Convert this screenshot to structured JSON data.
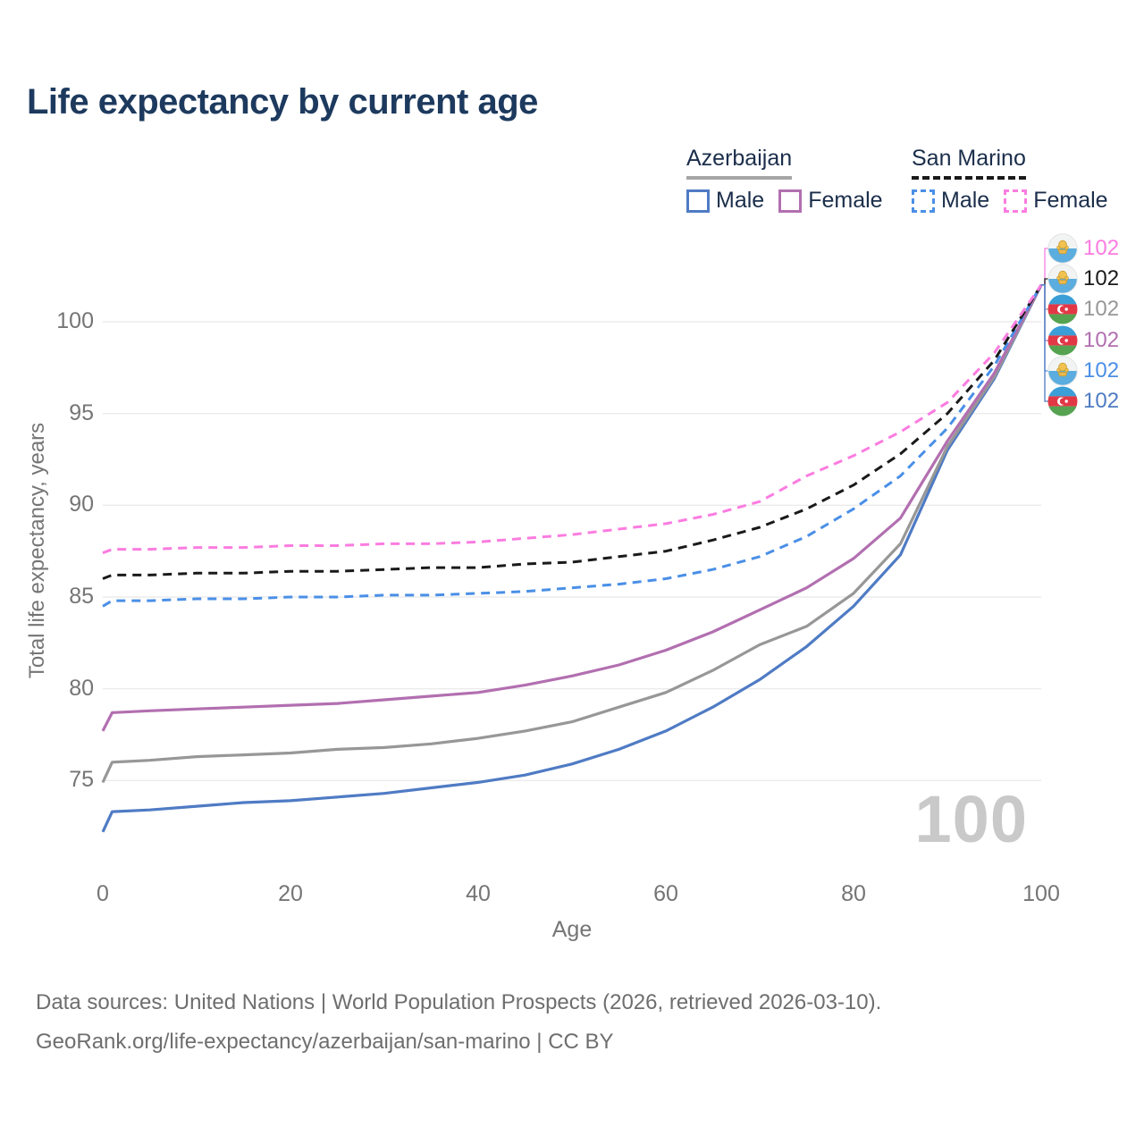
{
  "title": "Life expectancy by current age",
  "legend": {
    "groups": [
      {
        "key": "az",
        "label": "Azerbaijan",
        "underline_series": "az-total",
        "items": [
          {
            "label": "Male",
            "series": "az-male"
          },
          {
            "label": "Female",
            "series": "az-female"
          }
        ]
      },
      {
        "key": "sm",
        "label": "San Marino",
        "underline_series": "sm-total",
        "items": [
          {
            "label": "Male",
            "series": "sm-male"
          },
          {
            "label": "Female",
            "series": "sm-female"
          }
        ]
      }
    ]
  },
  "chart_data": {
    "type": "line",
    "title": "Life expectancy by current age",
    "xlabel": "Age",
    "ylabel": "Total life expectancy, years",
    "x_ticks": [
      0,
      20,
      40,
      60,
      80,
      100
    ],
    "y_ticks": [
      75,
      80,
      85,
      90,
      95,
      100
    ],
    "xlim": [
      0,
      100
    ],
    "ylim": [
      71,
      103.5
    ],
    "grid": "horizontal",
    "legend_position": "top-right",
    "x": [
      0,
      1,
      5,
      10,
      15,
      20,
      25,
      30,
      35,
      40,
      45,
      50,
      55,
      60,
      65,
      70,
      75,
      80,
      85,
      90,
      95,
      100
    ],
    "series": [
      {
        "key": "az-male",
        "name": "Azerbaijan Male",
        "color": "#4f7bc4",
        "dash": "",
        "values": [
          72.2,
          73.3,
          73.4,
          73.6,
          73.8,
          73.9,
          74.1,
          74.3,
          74.6,
          74.9,
          75.3,
          75.9,
          76.7,
          77.7,
          79.0,
          80.5,
          82.3,
          84.5,
          87.3,
          93.0,
          96.9,
          102
        ]
      },
      {
        "key": "az-total",
        "name": "Azerbaijan",
        "color": "#979797",
        "dash": "",
        "values": [
          74.9,
          76.0,
          76.1,
          76.3,
          76.4,
          76.5,
          76.7,
          76.8,
          77.0,
          77.3,
          77.7,
          78.2,
          79.0,
          79.8,
          81.0,
          82.4,
          83.4,
          85.2,
          87.9,
          93.2,
          97.0,
          102
        ]
      },
      {
        "key": "az-female",
        "name": "Azerbaijan Female",
        "color": "#b26fb0",
        "dash": "",
        "values": [
          77.7,
          78.7,
          78.8,
          78.9,
          79.0,
          79.1,
          79.2,
          79.4,
          79.6,
          79.8,
          80.2,
          80.7,
          81.3,
          82.1,
          83.1,
          84.3,
          85.5,
          87.1,
          89.3,
          93.5,
          97.2,
          102
        ]
      },
      {
        "key": "sm-male",
        "name": "San Marino Male",
        "color": "#4a8fe7",
        "dash": "10 7",
        "values": [
          84.5,
          84.8,
          84.8,
          84.9,
          84.9,
          85.0,
          85.0,
          85.1,
          85.1,
          85.2,
          85.3,
          85.5,
          85.7,
          86.0,
          86.5,
          87.2,
          88.3,
          89.8,
          91.6,
          94.2,
          97.6,
          102
        ]
      },
      {
        "key": "sm-total",
        "name": "San Marino",
        "color": "#1a1a1a",
        "dash": "10 7",
        "values": [
          86.0,
          86.2,
          86.2,
          86.3,
          86.3,
          86.4,
          86.4,
          86.5,
          86.6,
          86.6,
          86.8,
          86.9,
          87.2,
          87.5,
          88.1,
          88.8,
          89.8,
          91.1,
          92.8,
          95.0,
          97.9,
          102
        ]
      },
      {
        "key": "sm-female",
        "name": "San Marino Female",
        "color": "#fb7ce0",
        "dash": "10 7",
        "values": [
          87.4,
          87.6,
          87.6,
          87.7,
          87.7,
          87.8,
          87.8,
          87.9,
          87.9,
          88.0,
          88.2,
          88.4,
          88.7,
          89.0,
          89.5,
          90.2,
          91.6,
          92.7,
          94.0,
          95.6,
          98.3,
          102
        ]
      }
    ],
    "end_labels": [
      {
        "value": "102",
        "series": "sm-female",
        "flag": "san-marino"
      },
      {
        "value": "102",
        "series": "sm-total",
        "flag": "san-marino"
      },
      {
        "value": "102",
        "series": "az-total",
        "flag": "azerbaijan"
      },
      {
        "value": "102",
        "series": "az-female",
        "flag": "azerbaijan"
      },
      {
        "value": "102",
        "series": "sm-male",
        "flag": "san-marino"
      },
      {
        "value": "102",
        "series": "az-male",
        "flag": "azerbaijan"
      }
    ],
    "watermark": "100"
  },
  "footer": {
    "line1": "Data sources: United Nations | World Population Prospects (2026, retrieved 2026-03-10).",
    "line2": "GeoRank.org/life-expectancy/azerbaijan/san-marino | CC BY"
  }
}
